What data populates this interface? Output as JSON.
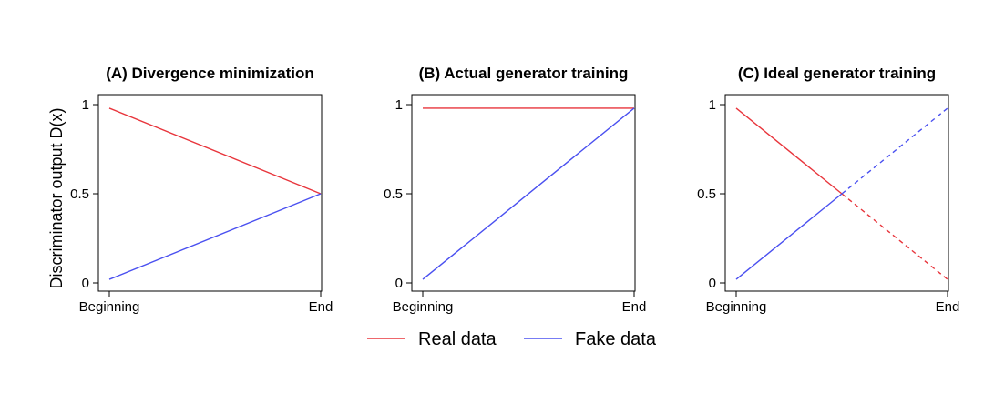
{
  "colors": {
    "real": "#e8353c",
    "fake": "#4a50f0",
    "axis": "#000000"
  },
  "ylabel": "Discriminator output D(x)",
  "legend": {
    "placement": "bottom-center",
    "items": [
      {
        "series": "real",
        "label": "Real data"
      },
      {
        "series": "fake",
        "label": "Fake data"
      }
    ]
  },
  "chart_data": [
    {
      "type": "line",
      "title": "(A) Divergence minimization",
      "xticks": [
        "Beginning",
        "End"
      ],
      "yticks": [
        "0",
        "0.5",
        "1"
      ],
      "ylim": [
        0,
        1
      ],
      "xlim": [
        0,
        1
      ],
      "series": [
        {
          "name": "Real data",
          "color_key": "real",
          "segments": [
            {
              "x": [
                0,
                1
              ],
              "y": [
                0.98,
                0.5
              ],
              "dashed": false
            }
          ]
        },
        {
          "name": "Fake data",
          "color_key": "fake",
          "segments": [
            {
              "x": [
                0,
                1
              ],
              "y": [
                0.02,
                0.5
              ],
              "dashed": false
            }
          ]
        }
      ]
    },
    {
      "type": "line",
      "title": "(B) Actual generator training",
      "xticks": [
        "Beginning",
        "End"
      ],
      "yticks": [
        "0",
        "0.5",
        "1"
      ],
      "ylim": [
        0,
        1
      ],
      "xlim": [
        0,
        1
      ],
      "series": [
        {
          "name": "Real data",
          "color_key": "real",
          "segments": [
            {
              "x": [
                0,
                1
              ],
              "y": [
                0.98,
                0.98
              ],
              "dashed": false
            }
          ]
        },
        {
          "name": "Fake data",
          "color_key": "fake",
          "segments": [
            {
              "x": [
                0,
                1
              ],
              "y": [
                0.02,
                0.98
              ],
              "dashed": false
            }
          ]
        }
      ]
    },
    {
      "type": "line",
      "title": "(C) Ideal generator training",
      "xticks": [
        "Beginning",
        "End"
      ],
      "yticks": [
        "0",
        "0.5",
        "1"
      ],
      "ylim": [
        0,
        1
      ],
      "xlim": [
        0,
        1
      ],
      "series": [
        {
          "name": "Real data",
          "color_key": "real",
          "segments": [
            {
              "x": [
                0,
                0.5
              ],
              "y": [
                0.98,
                0.5
              ],
              "dashed": false
            },
            {
              "x": [
                0.5,
                1
              ],
              "y": [
                0.5,
                0.02
              ],
              "dashed": true
            }
          ]
        },
        {
          "name": "Fake data",
          "color_key": "fake",
          "segments": [
            {
              "x": [
                0,
                0.5
              ],
              "y": [
                0.02,
                0.5
              ],
              "dashed": false
            },
            {
              "x": [
                0.5,
                1
              ],
              "y": [
                0.5,
                0.98
              ],
              "dashed": true
            }
          ]
        }
      ]
    }
  ]
}
